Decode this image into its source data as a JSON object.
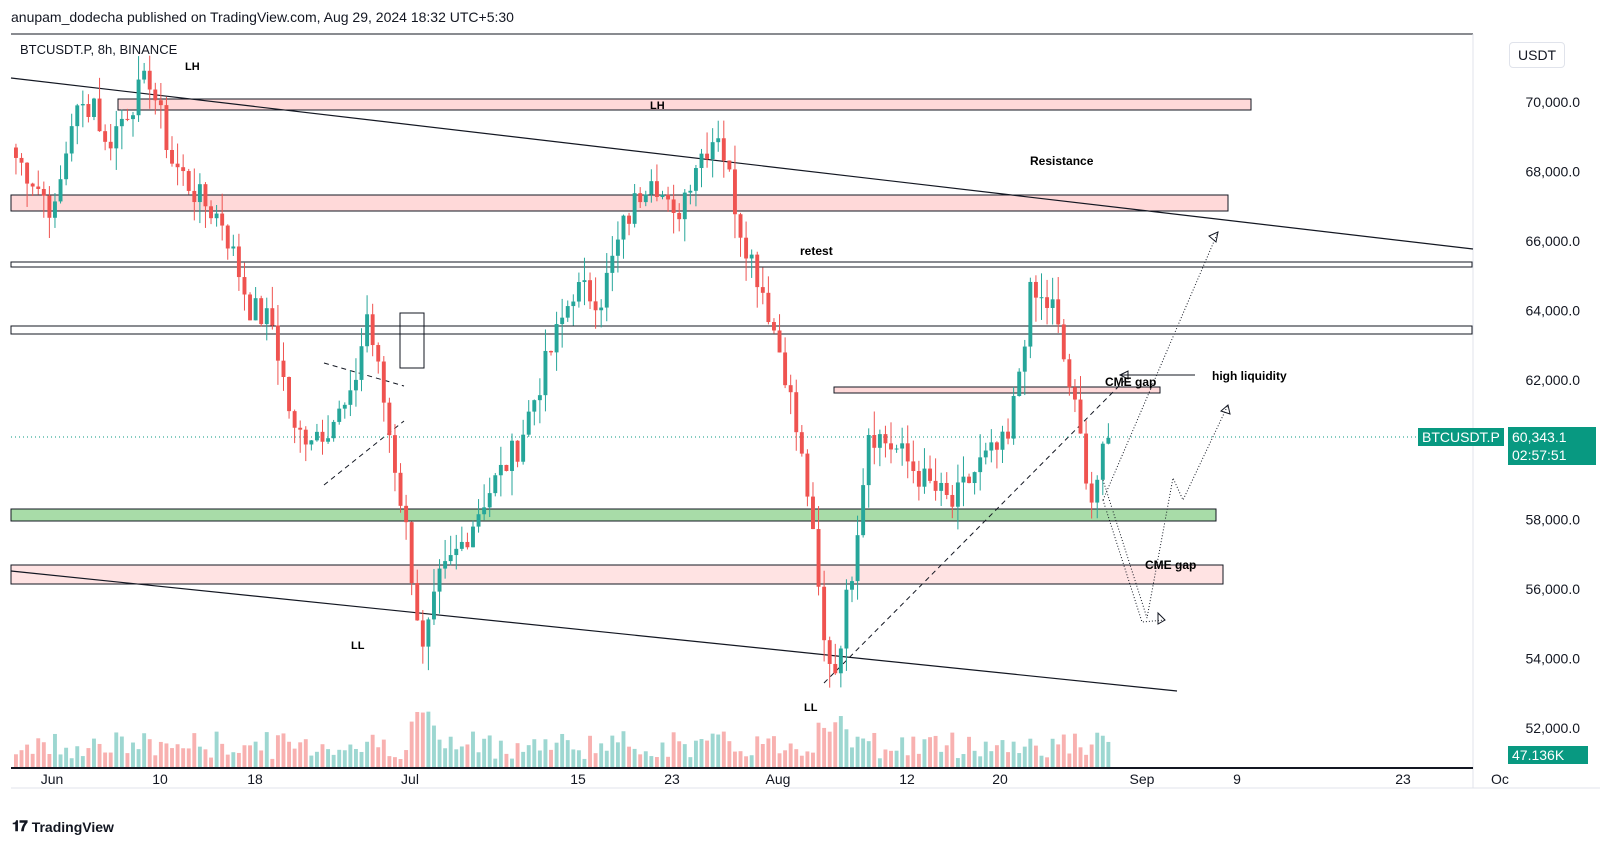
{
  "header": {
    "publisher": "anupam_dodecha published on TradingView.com, Aug 29, 2024 18:32 UTC+5:30"
  },
  "symbol": {
    "label": "BTCUSDT.P, 8h, BINANCE"
  },
  "currency": "USDT",
  "footer": {
    "brand": "TradingView"
  },
  "colors": {
    "up": "#26a69a",
    "down": "#ef5350",
    "pink_zone": "#ffd9d9",
    "green_zone": "#a8dca8",
    "accent": "#089981"
  },
  "price_tag": {
    "symbol": "BTCUSDT.P",
    "price": "60,343.1",
    "countdown": "02:57:51"
  },
  "volume_tag": "47.136K",
  "annotations": {
    "lh_top_left": "LH",
    "lh_zone": "LH",
    "resistance": "Resistance",
    "retest": "retest",
    "high_liquidity": "high liquidity",
    "cme_gap_upper": "CME gap",
    "cme_gap_lower": "CME gap",
    "ll_left": "LL",
    "ll_bottom": "LL"
  },
  "chart_data": {
    "type": "candlestick",
    "ylim": [
      51000,
      72000
    ],
    "y_ticks": [
      "70,000.0",
      "68,000.0",
      "66,000.0",
      "64,000.0",
      "62,000.0",
      "58,000.0",
      "56,000.0",
      "54,000.0",
      "52,000.0"
    ],
    "x_ticks": [
      "Jun",
      "10",
      "18",
      "Jul",
      "15",
      "23",
      "Aug",
      "12",
      "20",
      "Sep",
      "9",
      "23",
      "Oc"
    ],
    "last_price": 60343.1,
    "price_path": [
      [
        0,
        68400
      ],
      [
        3,
        67800
      ],
      [
        7,
        66800
      ],
      [
        10,
        69500
      ],
      [
        14,
        70100
      ],
      [
        16,
        68700
      ],
      [
        20,
        69800
      ],
      [
        24,
        70700
      ],
      [
        28,
        68300
      ],
      [
        33,
        67200
      ],
      [
        37,
        66600
      ],
      [
        42,
        64100
      ],
      [
        46,
        63600
      ],
      [
        50,
        60400
      ],
      [
        55,
        60600
      ],
      [
        60,
        61300
      ],
      [
        63,
        63900
      ],
      [
        66,
        61400
      ],
      [
        70,
        57700
      ],
      [
        73,
        54100
      ],
      [
        76,
        56200
      ],
      [
        80,
        57300
      ],
      [
        84,
        58600
      ],
      [
        90,
        60100
      ],
      [
        95,
        62400
      ],
      [
        100,
        64600
      ],
      [
        105,
        64400
      ],
      [
        109,
        66400
      ],
      [
        114,
        68100
      ],
      [
        118,
        66500
      ],
      [
        122,
        68300
      ],
      [
        126,
        69200
      ],
      [
        130,
        66400
      ],
      [
        134,
        64600
      ],
      [
        138,
        62300
      ],
      [
        142,
        58800
      ],
      [
        145,
        54400
      ],
      [
        147,
        53700
      ],
      [
        150,
        56600
      ],
      [
        153,
        60600
      ],
      [
        158,
        60000
      ],
      [
        163,
        59100
      ],
      [
        168,
        58400
      ],
      [
        173,
        59600
      ],
      [
        178,
        60200
      ],
      [
        182,
        64400
      ],
      [
        186,
        64100
      ],
      [
        190,
        61100
      ],
      [
        193,
        58600
      ],
      [
        196,
        60300
      ]
    ],
    "volume": {
      "last": "47.136K"
    }
  }
}
